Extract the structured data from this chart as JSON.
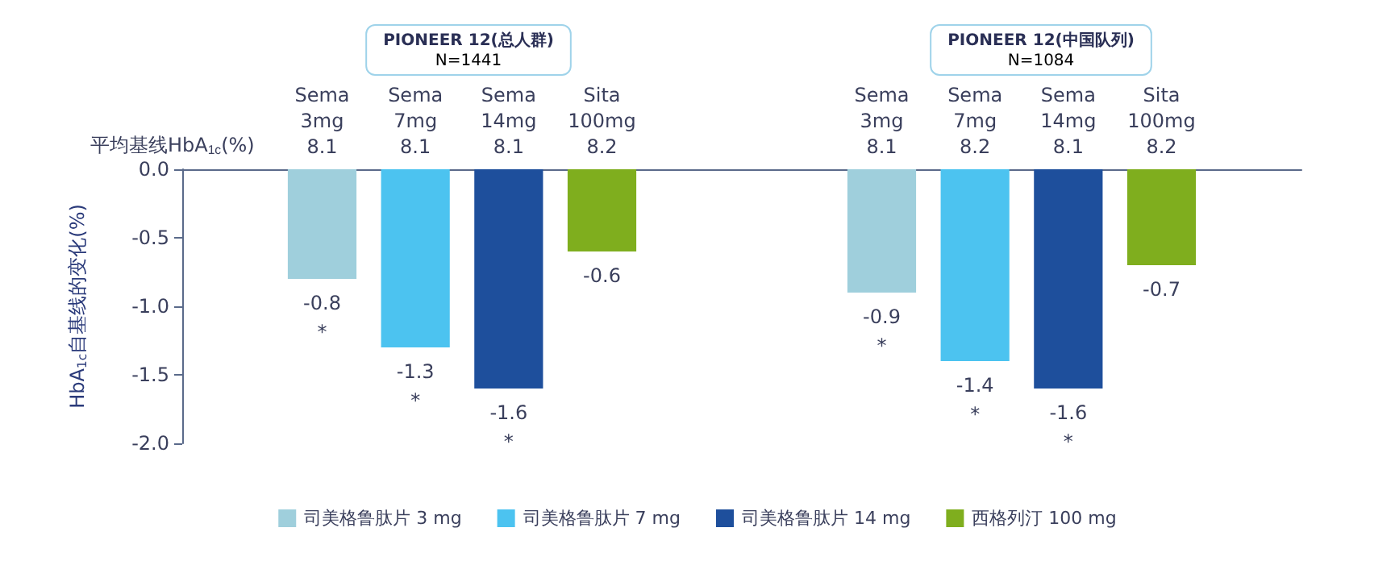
{
  "chart_data": {
    "type": "bar",
    "ylabel": "HbA$_{1c}$自基线的变化(%)",
    "categories": [
      null,
      "Sema\n3mg\n8.1",
      "Sema\n7mg\n8.1",
      "Sema\n14mg\n8.1",
      "Sita\n100mg\n8.2",
      null,
      null,
      "Sema\n3mg\n8.1",
      "Sema\n7mg\n8.2",
      "Sema\n14mg\n8.1",
      "Sita\n100mg\n8.2",
      null
    ],
    "series": [
      {
        "name": "司美格鲁肽片 3 mg",
        "color": "#9fcfdc",
        "values": [
          null,
          -0.8,
          null,
          null,
          null,
          null,
          null,
          -0.9,
          null,
          null,
          null,
          null
        ],
        "value_labels": [
          null,
          "-0.8\n*",
          null,
          null,
          null,
          null,
          null,
          "-0.9\n*",
          null,
          null,
          null,
          null
        ]
      },
      {
        "name": "司美格鲁肽片 7 mg",
        "color": "#4cc3f0",
        "values": [
          null,
          null,
          -1.3,
          null,
          null,
          null,
          null,
          null,
          -1.4,
          null,
          null,
          null
        ],
        "value_labels": [
          null,
          null,
          "-1.3\n*",
          null,
          null,
          null,
          null,
          null,
          "-1.4\n*",
          null,
          null,
          null
        ]
      },
      {
        "name": "司美格鲁肽片 14 mg",
        "color": "#1e4f9c",
        "values": [
          null,
          null,
          null,
          -1.6,
          null,
          null,
          null,
          null,
          null,
          -1.6,
          null,
          null
        ],
        "value_labels": [
          null,
          null,
          null,
          "-1.6\n*",
          null,
          null,
          null,
          null,
          null,
          "-1.6\n*",
          null,
          null
        ]
      },
      {
        "name": "西格列汀 100 mg",
        "color": "#7fae1e",
        "values": [
          null,
          null,
          null,
          null,
          -0.6,
          null,
          null,
          null,
          null,
          null,
          -0.7,
          null
        ],
        "value_labels": [
          null,
          null,
          null,
          null,
          "-0.6",
          null,
          null,
          null,
          null,
          null,
          "-0.7",
          null
        ]
      }
    ],
    "ylim": [
      -2,
      0
    ],
    "yticks": [
      {
        "value": 0,
        "label": "0.0"
      },
      {
        "value": -0.5,
        "label": "-0.5"
      },
      {
        "value": -1,
        "label": "-1.0"
      },
      {
        "value": -1.5,
        "label": "-1.5"
      },
      {
        "value": -2,
        "label": "-2.0"
      }
    ],
    "annotations": [
      "平均基线HbA$_{1c}$(%)",
      "PIONEER 12(总人群)\nN=1441",
      "PIONEER 12(中国队列)\nN=1084"
    ],
    "legend": "bottom",
    "grid": false
  }
}
